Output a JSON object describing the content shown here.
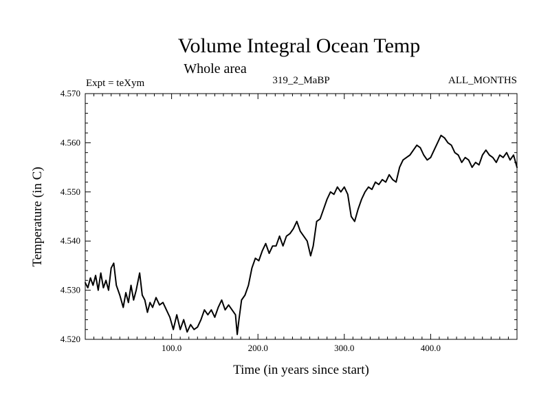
{
  "chart_data": {
    "type": "line",
    "title": "Volume Integral Ocean Temp",
    "subtitle": "Whole area",
    "left_header": "Expt = teXym",
    "center_header": "319_2_MaBP",
    "right_header": "ALL_MONTHS",
    "xlabel": "Time (in years since start)",
    "ylabel": "Temperature (in C)",
    "xlim": [
      0,
      500
    ],
    "ylim": [
      4.52,
      4.57
    ],
    "x_ticks": [
      100,
      200,
      300,
      400
    ],
    "x_tick_labels": [
      "100.0",
      "200.0",
      "300.0",
      "400.0"
    ],
    "y_ticks": [
      4.52,
      4.53,
      4.54,
      4.55,
      4.56,
      4.57
    ],
    "y_tick_labels": [
      "4.520",
      "4.530",
      "4.540",
      "4.550",
      "4.560",
      "4.570"
    ],
    "grid": false,
    "series": [
      {
        "color": "#000000",
        "x": [
          0,
          3,
          6,
          9,
          12,
          15,
          18,
          21,
          24,
          27,
          30,
          33,
          36,
          40,
          44,
          47,
          50,
          53,
          56,
          59,
          63,
          66,
          69,
          72,
          75,
          78,
          82,
          86,
          90,
          94,
          98,
          102,
          106,
          110,
          114,
          118,
          122,
          126,
          130,
          134,
          138,
          142,
          146,
          150,
          154,
          158,
          162,
          166,
          170,
          174,
          176,
          178,
          181,
          185,
          189,
          193,
          197,
          201,
          205,
          209,
          213,
          217,
          221,
          225,
          229,
          233,
          237,
          241,
          245,
          249,
          253,
          257,
          261,
          264,
          268,
          272,
          276,
          280,
          284,
          288,
          292,
          296,
          300,
          304,
          308,
          312,
          316,
          320,
          324,
          328,
          332,
          336,
          340,
          344,
          348,
          352,
          356,
          360,
          364,
          368,
          372,
          376,
          380,
          384,
          388,
          392,
          396,
          400,
          404,
          408,
          412,
          416,
          420,
          424,
          428,
          432,
          436,
          440,
          444,
          448,
          452,
          456,
          460,
          464,
          468,
          472,
          476,
          480,
          484,
          488,
          492,
          496,
          500
        ],
        "values": [
          4.5315,
          4.5305,
          4.5325,
          4.531,
          4.533,
          4.53,
          4.5335,
          4.5305,
          4.532,
          4.53,
          4.5345,
          4.5355,
          4.531,
          4.529,
          4.5265,
          4.5295,
          4.5275,
          4.531,
          4.528,
          4.53,
          4.5335,
          4.529,
          4.528,
          4.5255,
          4.5275,
          4.5265,
          4.5285,
          4.527,
          4.5275,
          4.526,
          4.5245,
          4.522,
          4.525,
          4.522,
          4.524,
          4.5215,
          4.523,
          4.522,
          4.5225,
          4.524,
          4.526,
          4.525,
          4.526,
          4.5245,
          4.5265,
          4.528,
          4.526,
          4.527,
          4.526,
          4.525,
          4.521,
          4.524,
          4.528,
          4.529,
          4.531,
          4.5345,
          4.5365,
          4.536,
          4.538,
          4.5395,
          4.5375,
          4.539,
          4.539,
          4.541,
          4.539,
          4.541,
          4.5415,
          4.5425,
          4.544,
          4.542,
          4.541,
          4.54,
          4.537,
          4.539,
          4.544,
          4.5445,
          4.5465,
          4.5485,
          4.55,
          4.5495,
          4.551,
          4.55,
          4.551,
          4.5495,
          4.545,
          4.544,
          4.5465,
          4.5485,
          4.55,
          4.551,
          4.5505,
          4.552,
          4.5515,
          4.5525,
          4.552,
          4.5535,
          4.5525,
          4.552,
          4.555,
          4.5565,
          4.557,
          4.5575,
          4.5585,
          4.5595,
          4.559,
          4.5575,
          4.5565,
          4.557,
          4.5585,
          4.56,
          4.5615,
          4.561,
          4.56,
          4.5595,
          4.558,
          4.5575,
          4.556,
          4.557,
          4.5565,
          4.555,
          4.556,
          4.5555,
          4.5575,
          4.5585,
          4.5575,
          4.557,
          4.556,
          4.5575,
          4.557,
          4.558,
          4.5565,
          4.5575,
          4.555
        ]
      }
    ]
  }
}
